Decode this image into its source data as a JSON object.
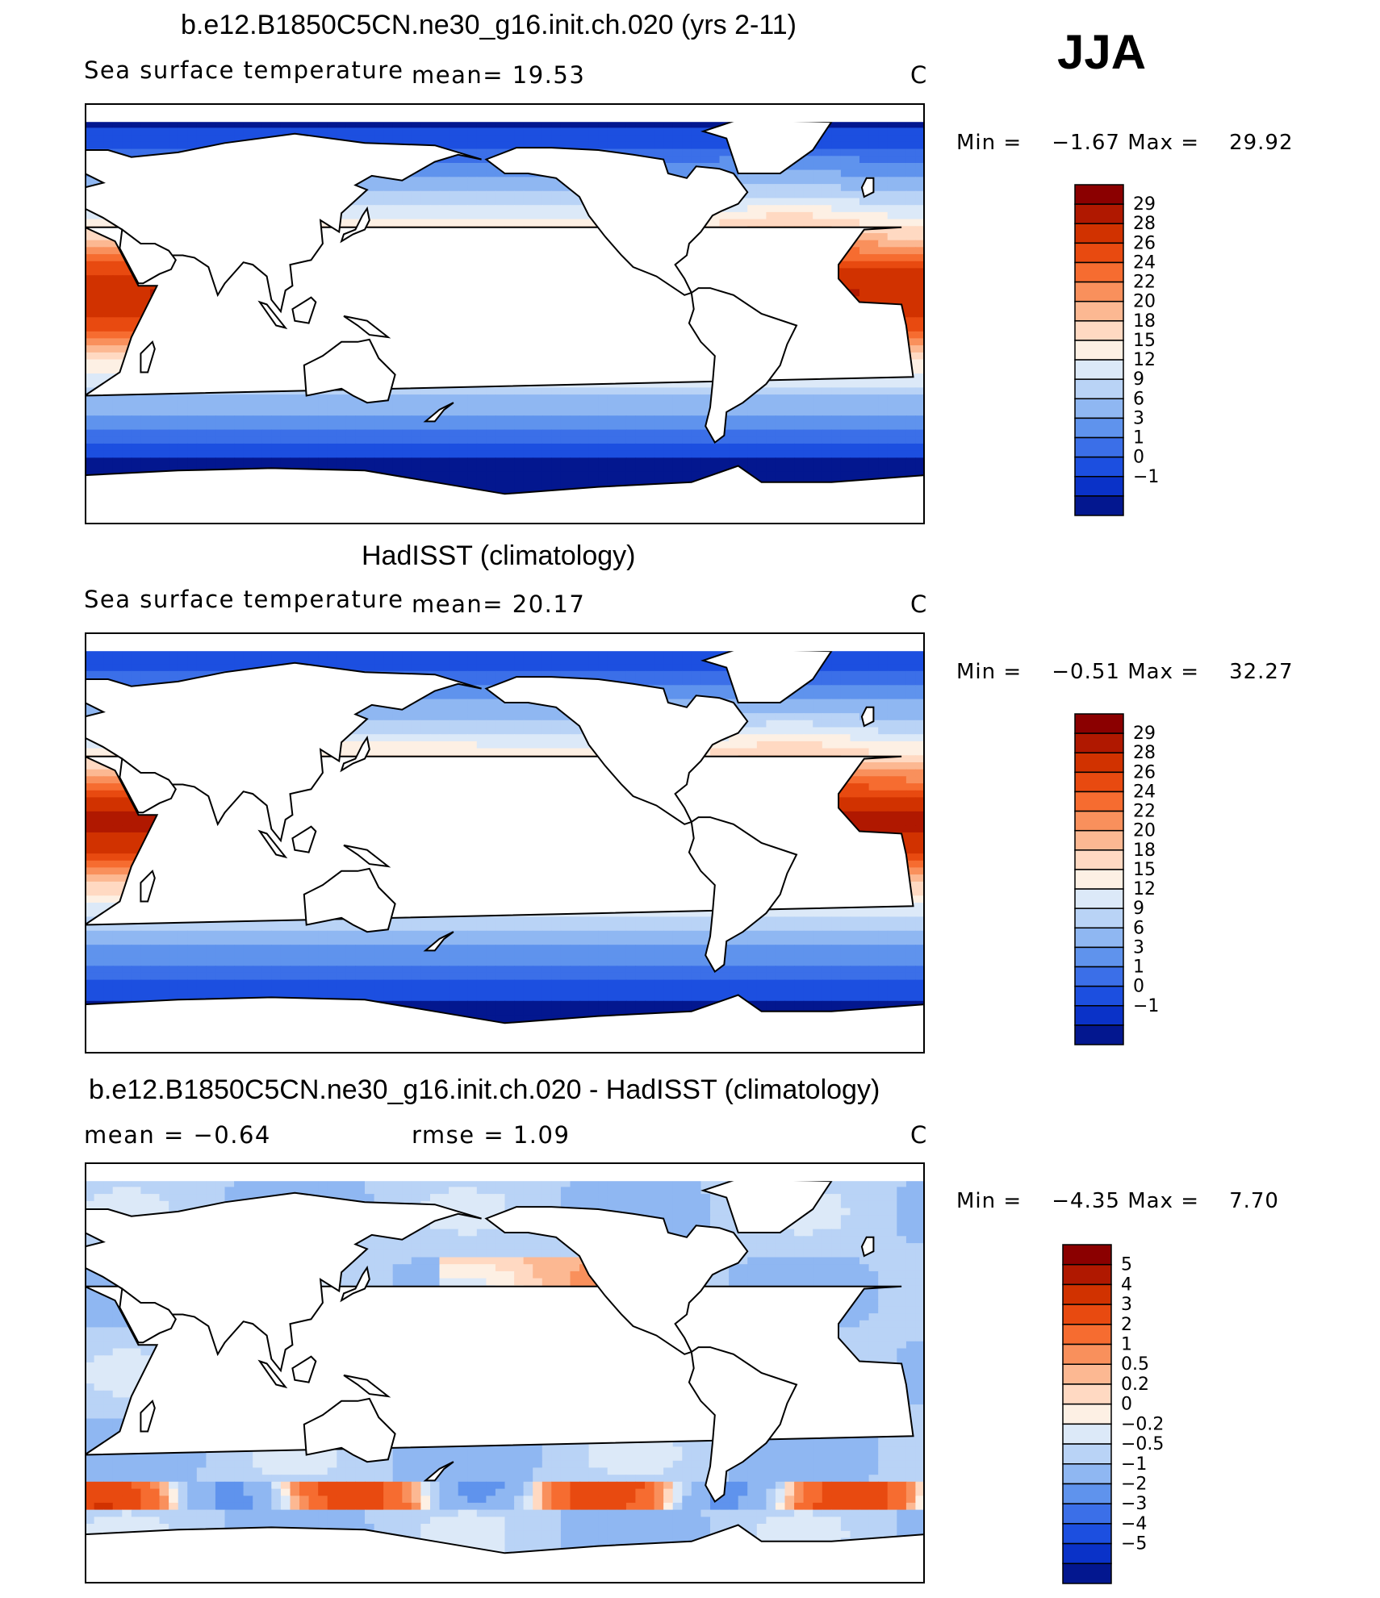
{
  "season": "JJA",
  "panels": [
    {
      "title": "b.e12.B1850C5CN.ne30_g16.init.ch.020 (yrs 2-11)",
      "left_label": "Sea surface temperature",
      "stat1": "mean=   19.53",
      "stat2": "",
      "units": "C",
      "min_label": "Min  =",
      "min_value": "−1.67",
      "max_label": "Max  =",
      "max_value": "29.92"
    },
    {
      "title": "HadISST (climatology)",
      "left_label": "Sea surface temperature",
      "stat1": "mean=   20.17",
      "stat2": "",
      "units": "C",
      "min_label": "Min  =",
      "min_value": "−0.51",
      "max_label": "Max  =",
      "max_value": "32.27"
    },
    {
      "title": "b.e12.B1850C5CN.ne30_g16.init.ch.020 - HadISST (climatology)",
      "left_label": "",
      "stat1": "mean  =   −0.64",
      "stat2": "rmse  =    1.09",
      "units": "C",
      "min_label": "Min  =",
      "min_value": "−4.35",
      "max_label": "Max  =",
      "max_value": "7.70"
    }
  ],
  "chart_data": [
    {
      "type": "heatmap",
      "title": "b.e12.B1850C5CN.ne30_g16.init.ch.020 (yrs 2-11)",
      "variable": "Sea surface temperature",
      "units": "C",
      "mean": 19.53,
      "min": -1.67,
      "max": 29.92,
      "colorbar_levels": [
        "29",
        "28",
        "26",
        "24",
        "22",
        "20",
        "18",
        "15",
        "12",
        "9",
        "6",
        "3",
        "1",
        "0",
        "−1"
      ],
      "colorbar_colors": [
        "#8b0000",
        "#b01800",
        "#d13200",
        "#e84a10",
        "#f66c30",
        "#f9905c",
        "#fcb892",
        "#ffd9c2",
        "#fdf0e4",
        "#dce9f8",
        "#b9d3f6",
        "#8fb7f2",
        "#5f93ed",
        "#3b6fe8",
        "#1c4fe0",
        "#0a32c8",
        "#03178f"
      ],
      "scale": "sst"
    },
    {
      "type": "heatmap",
      "title": "HadISST (climatology)",
      "variable": "Sea surface temperature",
      "units": "C",
      "mean": 20.17,
      "min": -0.51,
      "max": 32.27,
      "colorbar_levels": [
        "29",
        "28",
        "26",
        "24",
        "22",
        "20",
        "18",
        "15",
        "12",
        "9",
        "6",
        "3",
        "1",
        "0",
        "−1"
      ],
      "colorbar_colors": [
        "#8b0000",
        "#b01800",
        "#d13200",
        "#e84a10",
        "#f66c30",
        "#f9905c",
        "#fcb892",
        "#ffd9c2",
        "#fdf0e4",
        "#dce9f8",
        "#b9d3f6",
        "#8fb7f2",
        "#5f93ed",
        "#3b6fe8",
        "#1c4fe0",
        "#0a32c8",
        "#03178f"
      ],
      "scale": "sst"
    },
    {
      "type": "heatmap",
      "title": "b.e12.B1850C5CN.ne30_g16.init.ch.020 - HadISST (climatology)",
      "units": "C",
      "mean": -0.64,
      "rmse": 1.09,
      "min": -4.35,
      "max": 7.7,
      "colorbar_levels": [
        "5",
        "4",
        "3",
        "2",
        "1",
        "0.5",
        "0.2",
        "0",
        "−0.2",
        "−0.5",
        "−1",
        "−2",
        "−3",
        "−4",
        "−5"
      ],
      "colorbar_colors": [
        "#8b0000",
        "#b01800",
        "#d13200",
        "#e84a10",
        "#f66c30",
        "#f9905c",
        "#fcb892",
        "#ffd9c2",
        "#fdf0e4",
        "#dce9f8",
        "#b9d3f6",
        "#8fb7f2",
        "#5f93ed",
        "#3b6fe8",
        "#1c4fe0",
        "#0a32c8",
        "#03178f"
      ],
      "scale": "diff"
    }
  ]
}
